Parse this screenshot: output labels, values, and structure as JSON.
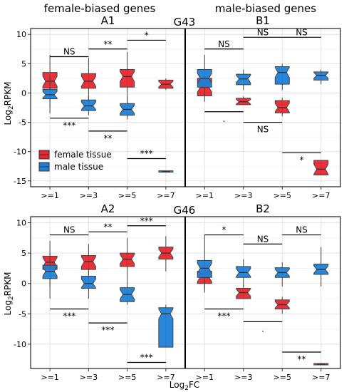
{
  "figure": {
    "header_left": "female-biased genes",
    "header_right": "male-biased genes",
    "ylabel": "Log",
    "ylabel_sub": "2",
    "ylabel_tail": "RPKM",
    "xlabel": "Log",
    "xlabel_sub": "2",
    "xlabel_tail": "FC",
    "legend": [
      {
        "label": "female tissue",
        "color": "#e8262f"
      },
      {
        "label": "male tissue",
        "color": "#1f7fd6"
      }
    ]
  },
  "chart_data": [
    {
      "type": "box",
      "group": "G43",
      "panels": [
        {
          "label": "A1",
          "categories": [
            ">=1",
            ">=3",
            ">=5",
            ">=7"
          ],
          "ylim": [
            -16,
            11
          ],
          "yticks": [
            10,
            5,
            0,
            -5,
            -10,
            -15
          ],
          "series": [
            {
              "name": "female tissue",
              "color": "#e8262f",
              "boxes": [
                {
                  "min": -2.5,
                  "q1": 0.8,
                  "median": 2.0,
                  "q3": 3.5,
                  "max": 6.5
                },
                {
                  "min": -1.5,
                  "q1": 0.8,
                  "median": 2.0,
                  "q3": 3.3,
                  "max": 6.0
                },
                {
                  "min": -2.0,
                  "q1": 1.0,
                  "median": 2.8,
                  "q3": 4.0,
                  "max": 7.0
                },
                {
                  "min": 0.5,
                  "q1": 0.8,
                  "median": 1.5,
                  "q3": 2.2,
                  "max": 2.5
                }
              ]
            },
            {
              "name": "male tissue",
              "color": "#1f7fd6",
              "boxes": [
                {
                  "min": -3.5,
                  "q1": -1.0,
                  "median": -0.3,
                  "q3": 0.6,
                  "max": 3.0
                },
                {
                  "min": -3.8,
                  "q1": -3.0,
                  "median": -2.2,
                  "q3": -1.2,
                  "max": -0.5
                },
                {
                  "min": -4.5,
                  "q1": -3.8,
                  "median": -2.8,
                  "q3": -1.8,
                  "max": -0.5
                },
                {
                  "min": -13.4,
                  "q1": -13.4,
                  "median": -13.4,
                  "q3": -13.4,
                  "max": -13.4
                }
              ]
            }
          ],
          "annotations": [
            {
              "text": "NS",
              "x1": 0,
              "x2": 1,
              "y": 6.2,
              "side": "above"
            },
            {
              "text": "**",
              "x1": 1,
              "x2": 2,
              "y": 7.5,
              "side": "above"
            },
            {
              "text": "*",
              "x1": 2,
              "x2": 3,
              "y": 9.0,
              "side": "above"
            },
            {
              "text": "***",
              "x1": 0,
              "x2": 1,
              "y": -4.3,
              "side": "below"
            },
            {
              "text": "**",
              "x1": 1,
              "x2": 2,
              "y": -6.5,
              "side": "below"
            },
            {
              "text": "***",
              "x1": 2,
              "x2": 3,
              "y": -11.2,
              "side": "above"
            }
          ]
        },
        {
          "label": "B1",
          "categories": [
            ">=1",
            ">=3",
            ">=5",
            ">=7"
          ],
          "ylim": [
            -16,
            11
          ],
          "yticks": [
            10,
            5,
            0,
            -5,
            -10,
            -15
          ],
          "series": [
            {
              "name": "female tissue",
              "color": "#e8262f",
              "boxes": [
                {
                  "min": -1.5,
                  "q1": -0.5,
                  "median": 1.0,
                  "q3": 2.5,
                  "max": 4.0
                },
                {
                  "min": -2.0,
                  "q1": -2.0,
                  "median": -1.5,
                  "q3": -0.9,
                  "max": -0.6
                },
                {
                  "min": -4.0,
                  "q1": -3.4,
                  "median": -2.5,
                  "q3": -1.3,
                  "max": -0.8
                },
                {
                  "min": -14.0,
                  "q1": -14.0,
                  "median": -13.0,
                  "q3": -11.5,
                  "max": -11.5
                }
              ]
            },
            {
              "name": "male tissue",
              "color": "#1f7fd6",
              "boxes": [
                {
                  "min": -0.5,
                  "q1": 1.0,
                  "median": 2.5,
                  "q3": 4.0,
                  "max": 6.5
                },
                {
                  "min": 0.5,
                  "q1": 1.4,
                  "median": 2.4,
                  "q3": 3.2,
                  "max": 4.0
                },
                {
                  "min": 0.5,
                  "q1": 1.5,
                  "median": 3.5,
                  "q3": 4.5,
                  "max": 5.0
                },
                {
                  "min": 1.5,
                  "q1": 2.2,
                  "median": 3.0,
                  "q3": 3.6,
                  "max": 4.0
                }
              ]
            }
          ],
          "annotations": [
            {
              "text": "NS",
              "x1": 0,
              "x2": 1,
              "y": 7.5,
              "side": "above"
            },
            {
              "text": "NS",
              "x1": 1,
              "x2": 2,
              "y": 9.5,
              "side": "above"
            },
            {
              "text": "NS",
              "x1": 2,
              "x2": 3,
              "y": 9.5,
              "side": "above"
            },
            {
              "text": ".",
              "x1": 0,
              "x2": 1,
              "y": -3.2,
              "side": "below"
            },
            {
              "text": "NS",
              "x1": 1,
              "x2": 2,
              "y": -5.0,
              "side": "below"
            },
            {
              "text": "*",
              "x1": 2,
              "x2": 3,
              "y": -10.2,
              "side": "below"
            }
          ]
        }
      ]
    },
    {
      "type": "box",
      "group": "G46",
      "panels": [
        {
          "label": "A2",
          "categories": [
            ">=1",
            ">=3",
            ">=5",
            ">=7"
          ],
          "ylim": [
            -14,
            11
          ],
          "yticks": [
            10,
            5,
            0,
            -5,
            -10
          ],
          "series": [
            {
              "name": "female tissue",
              "color": "#e8262f",
              "boxes": [
                {
                  "min": -0.5,
                  "q1": 2.3,
                  "median": 3.5,
                  "q3": 4.5,
                  "max": 7.0
                },
                {
                  "min": 0.5,
                  "q1": 2.3,
                  "median": 3.6,
                  "q3": 4.6,
                  "max": 6.5
                },
                {
                  "min": 1.0,
                  "q1": 2.8,
                  "median": 4.0,
                  "q3": 5.0,
                  "max": 7.5
                },
                {
                  "min": 2.0,
                  "q1": 4.0,
                  "median": 5.0,
                  "q3": 6.0,
                  "max": 7.8
                }
              ]
            },
            {
              "name": "male tissue",
              "color": "#1f7fd6",
              "boxes": [
                {
                  "min": -2.5,
                  "q1": 0.8,
                  "median": 2.0,
                  "q3": 3.0,
                  "max": 5.0
                },
                {
                  "min": -2.5,
                  "q1": -0.8,
                  "median": 0.0,
                  "q3": 1.2,
                  "max": 2.5
                },
                {
                  "min": -3.5,
                  "q1": -3.0,
                  "median": -1.8,
                  "q3": -0.7,
                  "max": 1.0
                },
                {
                  "min": -10.5,
                  "q1": -10.5,
                  "median": -5.0,
                  "q3": -4.0,
                  "max": -3.5
                }
              ]
            }
          ],
          "annotations": [
            {
              "text": "NS",
              "x1": 0,
              "x2": 1,
              "y": 8.0,
              "side": "above"
            },
            {
              "text": "**",
              "x1": 1,
              "x2": 2,
              "y": 8.5,
              "side": "above"
            },
            {
              "text": "***",
              "x1": 2,
              "x2": 3,
              "y": 9.5,
              "side": "above"
            },
            {
              "text": "***",
              "x1": 0,
              "x2": 1,
              "y": -4.2,
              "side": "below"
            },
            {
              "text": "***",
              "x1": 1,
              "x2": 2,
              "y": -6.5,
              "side": "below"
            },
            {
              "text": "***",
              "x1": 2,
              "x2": 3,
              "y": -13.0,
              "side": "above"
            }
          ]
        },
        {
          "label": "B2",
          "categories": [
            ">=1",
            ">=3",
            ">=5",
            ">=7"
          ],
          "ylim": [
            -14,
            11
          ],
          "yticks": [
            10,
            5,
            0,
            -5,
            -10
          ],
          "series": [
            {
              "name": "female tissue",
              "color": "#e8262f",
              "boxes": [
                {
                  "min": -1.0,
                  "q1": 0.0,
                  "median": 1.0,
                  "q3": 2.0,
                  "max": 3.0
                },
                {
                  "min": -2.5,
                  "q1": -2.5,
                  "median": -1.5,
                  "q3": -0.8,
                  "max": -0.2
                },
                {
                  "min": -5.0,
                  "q1": -4.2,
                  "median": -3.5,
                  "q3": -2.7,
                  "max": -2.2
                },
                {
                  "min": -13.3,
                  "q1": -13.3,
                  "median": -13.3,
                  "q3": -13.3,
                  "max": -13.3
                }
              ]
            },
            {
              "name": "male tissue",
              "color": "#1f7fd6",
              "boxes": [
                {
                  "min": -1.5,
                  "q1": 1.0,
                  "median": 2.5,
                  "q3": 3.8,
                  "max": 8.0
                },
                {
                  "min": -0.5,
                  "q1": 1.0,
                  "median": 1.8,
                  "q3": 2.8,
                  "max": 4.0
                },
                {
                  "min": -0.5,
                  "q1": 1.0,
                  "median": 1.8,
                  "q3": 2.6,
                  "max": 3.5
                },
                {
                  "min": -0.5,
                  "q1": 1.5,
                  "median": 2.3,
                  "q3": 3.2,
                  "max": 6.0
                }
              ]
            }
          ],
          "annotations": [
            {
              "text": "*",
              "x1": 0,
              "x2": 1,
              "y": 8.0,
              "side": "above"
            },
            {
              "text": "NS",
              "x1": 1,
              "x2": 2,
              "y": 6.5,
              "side": "above"
            },
            {
              "text": "NS",
              "x1": 2,
              "x2": 3,
              "y": 8.0,
              "side": "above"
            },
            {
              "text": "***",
              "x1": 0,
              "x2": 1,
              "y": -4.2,
              "side": "below"
            },
            {
              "text": ".",
              "x1": 1,
              "x2": 2,
              "y": -6.3,
              "side": "below"
            },
            {
              "text": "**",
              "x1": 2,
              "x2": 3,
              "y": -11.3,
              "side": "below"
            }
          ]
        }
      ]
    }
  ]
}
